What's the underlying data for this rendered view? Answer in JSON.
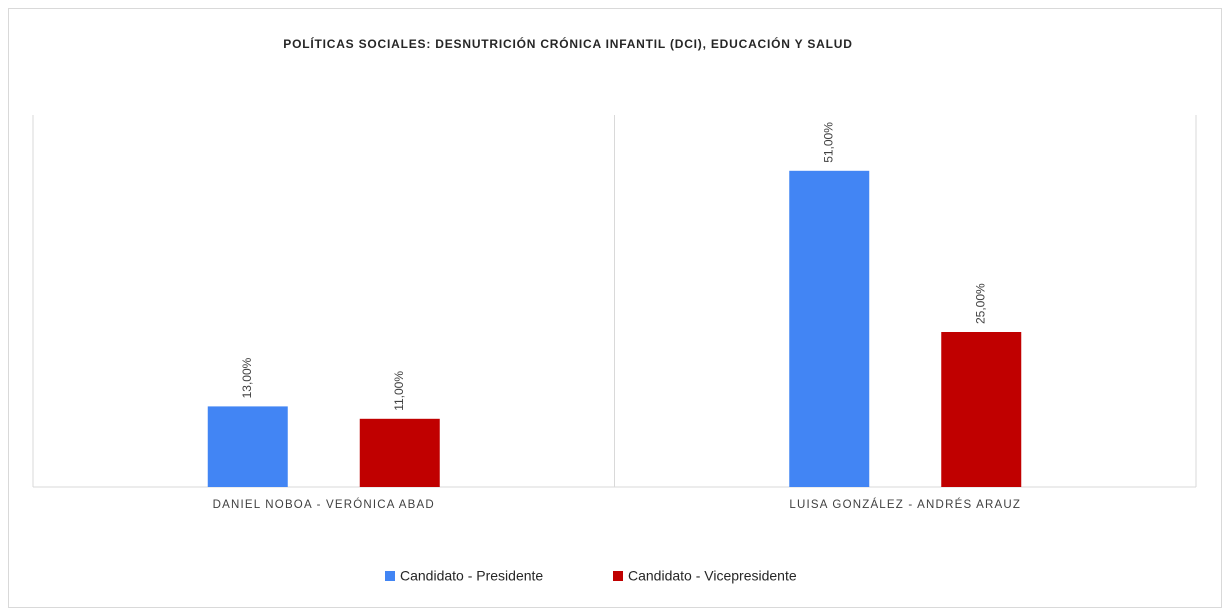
{
  "chart_data": {
    "type": "bar",
    "title": "POLÍTICAS SOCIALES: DESNUTRICIÓN CRÓNICA INFANTIL (DCI), EDUCACIÓN Y SALUD",
    "categories": [
      "DANIEL NOBOA - VERÓNICA ABAD",
      "LUISA GONZÁLEZ - ANDRÉS ARAUZ"
    ],
    "series": [
      {
        "name": "Candidato - Presidente",
        "color": "#4285f4",
        "values": [
          13,
          51
        ],
        "value_labels": [
          "13,00%",
          "51,00%"
        ]
      },
      {
        "name": "Candidato - Vicepresidente",
        "color": "#c00000",
        "values": [
          11,
          25
        ],
        "value_labels": [
          "11,00%",
          "25,00%"
        ]
      }
    ],
    "ylim": [
      0,
      60
    ],
    "legend": "bottom"
  }
}
